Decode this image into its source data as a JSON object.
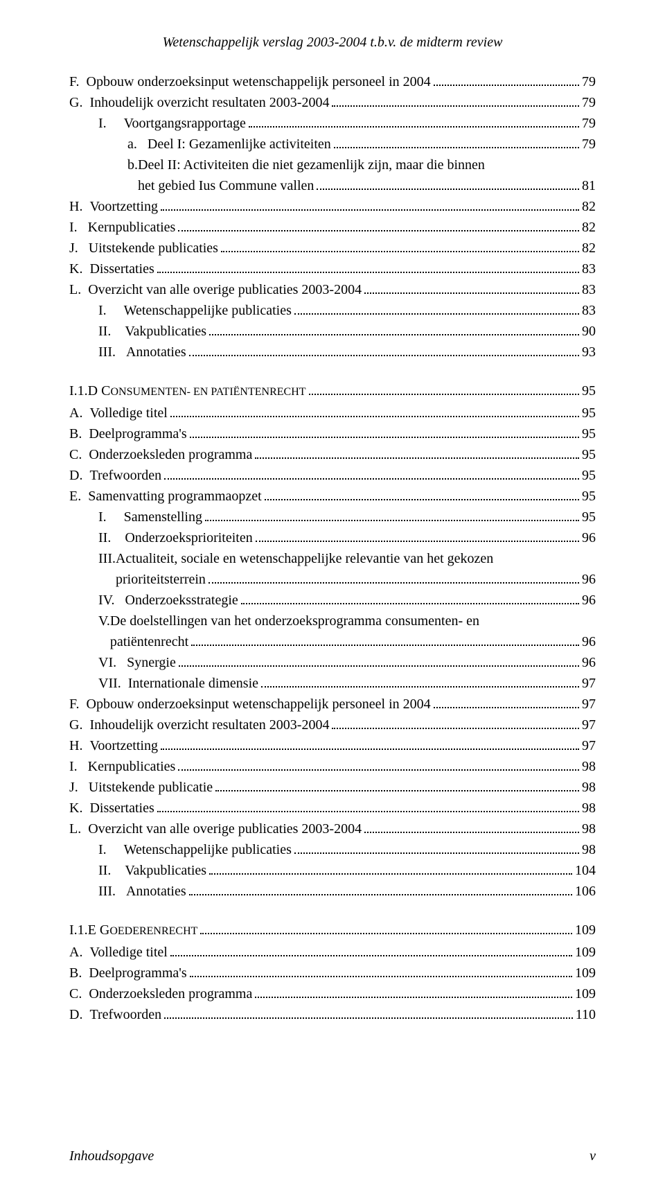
{
  "header": "Wetenschappelijk verslag 2003-2004 t.b.v. de midterm review",
  "footer_left": "Inhoudsopgave",
  "footer_right": "v",
  "sections": [
    {
      "heading": null,
      "entries": [
        {
          "lvl": 1,
          "label": "F.  ",
          "title": "Opbouw onderzoeksinput wetenschappelijk personeel in 2004",
          "page": "79"
        },
        {
          "lvl": 1,
          "label": "G.  ",
          "title": "Inhoudelijk overzicht resultaten 2003-2004",
          "page": "79"
        },
        {
          "lvl": 2,
          "label": "I.     ",
          "title": "Voortgangsrapportage",
          "page": "79"
        },
        {
          "lvl": 3,
          "label": "a.   ",
          "title": "Deel I: Gezamenlijke activiteiten",
          "page": "79"
        },
        {
          "lvl": 3,
          "label": "b.   ",
          "title": "Deel II: Activiteiten die niet gezamenlijk zijn, maar die binnen het gebied Ius Commune vallen",
          "page": "81",
          "wrap": true
        },
        {
          "lvl": 1,
          "label": "H.  ",
          "title": "Voortzetting",
          "page": "82"
        },
        {
          "lvl": 1,
          "label": "I.   ",
          "title": "Kernpublicaties",
          "page": "82"
        },
        {
          "lvl": 1,
          "label": "J.   ",
          "title": "Uitstekende publicaties",
          "page": "82"
        },
        {
          "lvl": 1,
          "label": "K.  ",
          "title": "Dissertaties",
          "page": "83"
        },
        {
          "lvl": 1,
          "label": "L.  ",
          "title": "Overzicht van alle overige publicaties 2003-2004",
          "page": "83"
        },
        {
          "lvl": 2,
          "label": "I.     ",
          "title": "Wetenschappelijke publicaties",
          "page": "83"
        },
        {
          "lvl": 2,
          "label": "II.    ",
          "title": "Vakpublicaties",
          "page": "90"
        },
        {
          "lvl": 2,
          "label": "III.   ",
          "title": "Annotaties",
          "page": "93"
        }
      ]
    },
    {
      "heading": {
        "prefix": "I.1.D  C",
        "rest": "ONSUMENTEN- EN PATIËNTENRECHT",
        "page": "95"
      },
      "entries": [
        {
          "lvl": 1,
          "label": "A.  ",
          "title": "Volledige titel",
          "page": "95"
        },
        {
          "lvl": 1,
          "label": "B.  ",
          "title": "Deelprogramma's",
          "page": "95"
        },
        {
          "lvl": 1,
          "label": "C.  ",
          "title": "Onderzoeksleden programma",
          "page": "95"
        },
        {
          "lvl": 1,
          "label": "D.  ",
          "title": "Trefwoorden",
          "page": "95"
        },
        {
          "lvl": 1,
          "label": "E.  ",
          "title": "Samenvatting programmaopzet",
          "page": "95"
        },
        {
          "lvl": 2,
          "label": "I.     ",
          "title": "Samenstelling",
          "page": "95"
        },
        {
          "lvl": 2,
          "label": "II.    ",
          "title": "Onderzoeksprioriteiten",
          "page": "96"
        },
        {
          "lvl": 2,
          "label": "III.   ",
          "title": "Actualiteit, sociale en wetenschappelijke relevantie van het gekozen prioriteitsterrein",
          "page": "96",
          "wrap": true
        },
        {
          "lvl": 2,
          "label": "IV.   ",
          "title": "Onderzoeksstrategie",
          "page": "96"
        },
        {
          "lvl": 2,
          "label": "V.    ",
          "title": "De doelstellingen van het onderzoeksprogramma consumenten- en patiëntenrecht",
          "page": "96",
          "wrap": true
        },
        {
          "lvl": 2,
          "label": "VI.   ",
          "title": "Synergie",
          "page": "96"
        },
        {
          "lvl": 2,
          "label": "VII.  ",
          "title": "Internationale dimensie",
          "page": "97"
        },
        {
          "lvl": 1,
          "label": "F.  ",
          "title": "Opbouw onderzoeksinput wetenschappelijk personeel in 2004",
          "page": "97"
        },
        {
          "lvl": 1,
          "label": "G.  ",
          "title": "Inhoudelijk overzicht resultaten 2003-2004",
          "page": "97"
        },
        {
          "lvl": 1,
          "label": "H.  ",
          "title": "Voortzetting",
          "page": "97"
        },
        {
          "lvl": 1,
          "label": "I.   ",
          "title": "Kernpublicaties",
          "page": "98"
        },
        {
          "lvl": 1,
          "label": "J.   ",
          "title": "Uitstekende publicatie",
          "page": "98"
        },
        {
          "lvl": 1,
          "label": "K.  ",
          "title": "Dissertaties",
          "page": "98"
        },
        {
          "lvl": 1,
          "label": "L.  ",
          "title": "Overzicht van alle overige publicaties 2003-2004",
          "page": "98"
        },
        {
          "lvl": 2,
          "label": "I.     ",
          "title": "Wetenschappelijke publicaties",
          "page": "98"
        },
        {
          "lvl": 2,
          "label": "II.    ",
          "title": "Vakpublicaties",
          "page": "104"
        },
        {
          "lvl": 2,
          "label": "III.   ",
          "title": "Annotaties",
          "page": "106"
        }
      ]
    },
    {
      "heading": {
        "prefix": "I.1.E  G",
        "rest": "OEDERENRECHT",
        "page": "109"
      },
      "entries": [
        {
          "lvl": 1,
          "label": "A.  ",
          "title": "Volledige titel",
          "page": "109"
        },
        {
          "lvl": 1,
          "label": "B.  ",
          "title": "Deelprogramma's",
          "page": "109"
        },
        {
          "lvl": 1,
          "label": "C.  ",
          "title": "Onderzoeksleden programma",
          "page": "109"
        },
        {
          "lvl": 1,
          "label": "D.  ",
          "title": "Trefwoorden",
          "page": "110"
        }
      ]
    }
  ]
}
